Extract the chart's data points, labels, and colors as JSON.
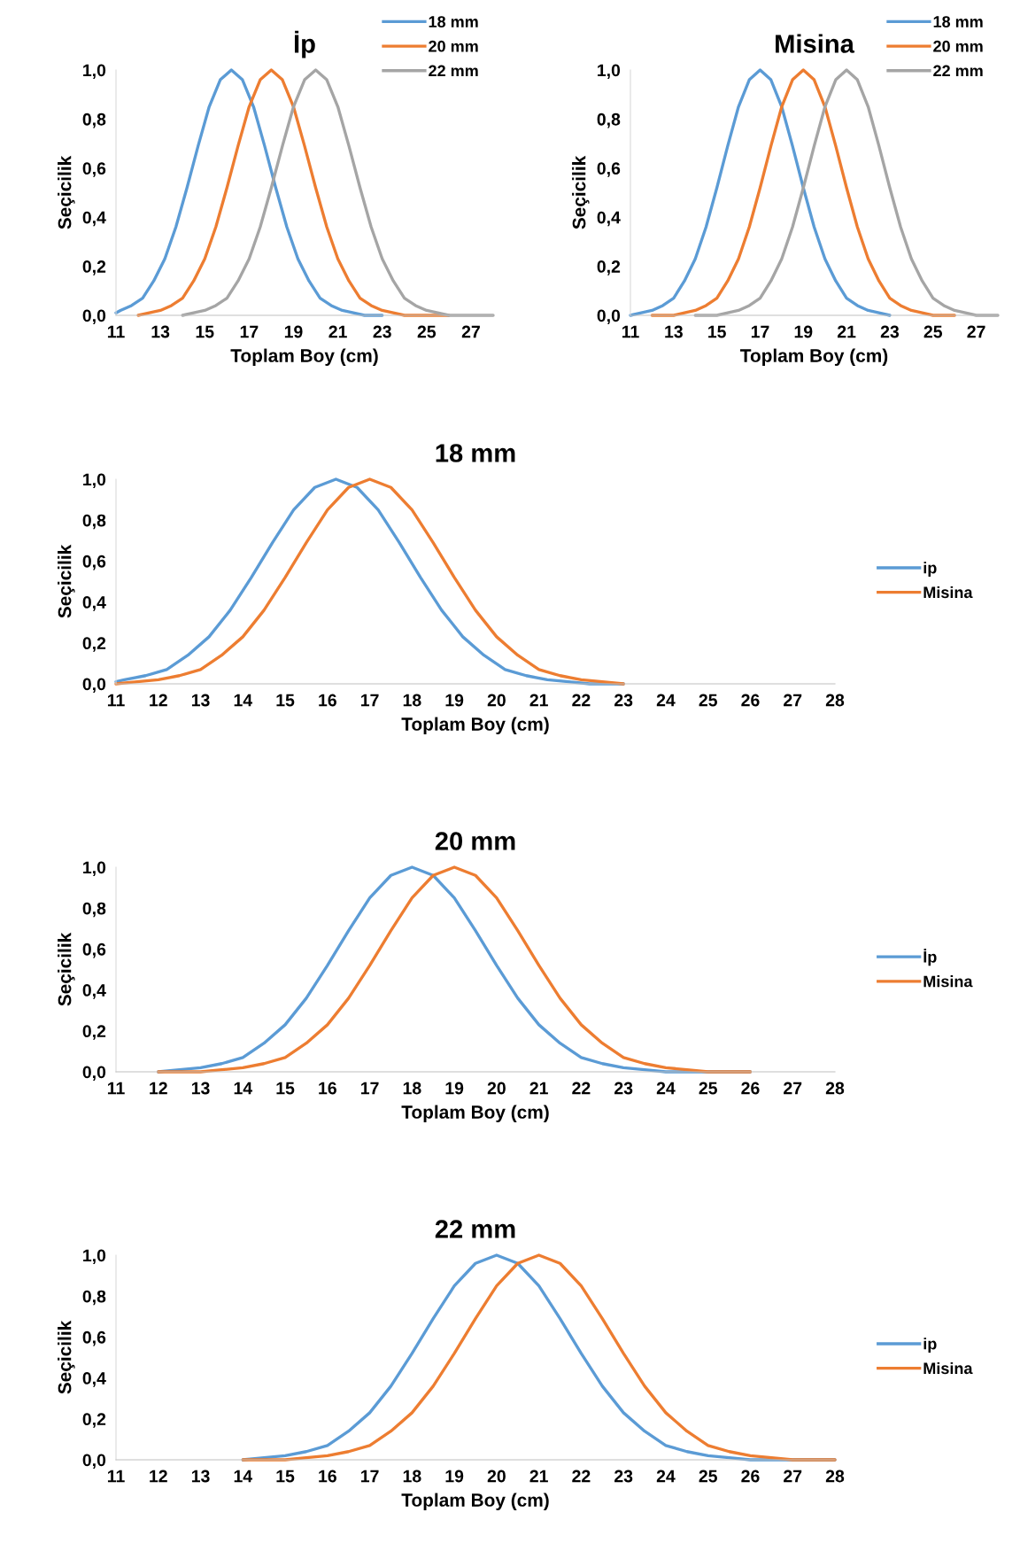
{
  "chart_data": [
    {
      "type": "line",
      "title": "İp",
      "xlabel": "Toplam Boy (cm)",
      "ylabel": "Seçicilik",
      "xlim": [
        11,
        28
      ],
      "xticks": [
        11,
        13,
        15,
        17,
        19,
        21,
        23,
        25,
        27
      ],
      "ylim": [
        0,
        1
      ],
      "yticks": [
        {
          "value": 0,
          "label": "0,0"
        },
        {
          "value": 0.2,
          "label": "0,2"
        },
        {
          "value": 0.4,
          "label": "0,4"
        },
        {
          "value": 0.6,
          "label": "0,6"
        },
        {
          "value": 0.8,
          "label": "0,8"
        },
        {
          "value": 1,
          "label": "1,0"
        }
      ],
      "grid": false,
      "legend": "top right",
      "series": [
        {
          "name": "18 mm",
          "color": "#5b9bd5",
          "x": [
            11,
            11.2,
            11.7,
            12.2,
            12.7,
            13.2,
            13.7,
            14.2,
            14.7,
            15.2,
            15.7,
            16.2,
            16.7,
            17.2,
            17.7,
            18.2,
            18.7,
            19.2,
            19.7,
            20.2,
            20.7,
            21.2,
            21.7,
            22.2,
            22.7,
            23
          ],
          "values": [
            0.01,
            0.02,
            0.04,
            0.07,
            0.14,
            0.23,
            0.36,
            0.52,
            0.69,
            0.85,
            0.96,
            1.0,
            0.96,
            0.85,
            0.69,
            0.52,
            0.36,
            0.23,
            0.14,
            0.07,
            0.04,
            0.02,
            0.01,
            0,
            0,
            0
          ]
        },
        {
          "name": "20 mm",
          "color": "#ed7d31",
          "x": [
            12,
            12.5,
            13,
            13.5,
            14,
            14.5,
            15,
            15.5,
            16,
            16.5,
            17,
            17.5,
            18,
            18.5,
            19,
            19.5,
            20,
            20.5,
            21,
            21.5,
            22,
            22.5,
            23,
            23.5,
            24,
            24.5,
            25,
            25.5,
            26
          ],
          "values": [
            0,
            0.01,
            0.02,
            0.04,
            0.07,
            0.14,
            0.23,
            0.36,
            0.52,
            0.69,
            0.85,
            0.96,
            1.0,
            0.96,
            0.85,
            0.69,
            0.52,
            0.36,
            0.23,
            0.14,
            0.07,
            0.04,
            0.02,
            0.01,
            0,
            0,
            0,
            0,
            0
          ]
        },
        {
          "name": "22 mm",
          "color": "#a5a5a5",
          "x": [
            14,
            14.5,
            15,
            15.5,
            16,
            16.5,
            17,
            17.5,
            18,
            18.5,
            19,
            19.5,
            20,
            20.5,
            21,
            21.5,
            22,
            22.5,
            23,
            23.5,
            24,
            24.5,
            25,
            25.5,
            26,
            26.5,
            27,
            27.5,
            28
          ],
          "values": [
            0,
            0.01,
            0.02,
            0.04,
            0.07,
            0.14,
            0.23,
            0.36,
            0.52,
            0.69,
            0.85,
            0.96,
            1.0,
            0.96,
            0.85,
            0.69,
            0.52,
            0.36,
            0.23,
            0.14,
            0.07,
            0.04,
            0.02,
            0.01,
            0,
            0,
            0,
            0,
            0
          ]
        }
      ]
    },
    {
      "type": "line",
      "title": "Misina",
      "xlabel": "Toplam Boy (cm)",
      "ylabel": "Seçicilik",
      "xlim": [
        11,
        28
      ],
      "xticks": [
        11,
        13,
        15,
        17,
        19,
        21,
        23,
        25,
        27
      ],
      "ylim": [
        0,
        1
      ],
      "yticks": [
        {
          "value": 0,
          "label": "0,0"
        },
        {
          "value": 0.2,
          "label": "0,2"
        },
        {
          "value": 0.4,
          "label": "0,4"
        },
        {
          "value": 0.6,
          "label": "0,6"
        },
        {
          "value": 0.8,
          "label": "0,8"
        },
        {
          "value": 1,
          "label": "1,0"
        }
      ],
      "grid": false,
      "legend": "top right",
      "series": [
        {
          "name": "18 mm",
          "color": "#5b9bd5",
          "x": [
            11,
            11.5,
            12,
            12.5,
            13,
            13.5,
            14,
            14.5,
            15,
            15.5,
            16,
            16.5,
            17,
            17.5,
            18,
            18.5,
            19,
            19.5,
            20,
            20.5,
            21,
            21.5,
            22,
            22.5,
            23
          ],
          "values": [
            0,
            0.01,
            0.02,
            0.04,
            0.07,
            0.14,
            0.23,
            0.36,
            0.52,
            0.69,
            0.85,
            0.96,
            1.0,
            0.96,
            0.85,
            0.69,
            0.52,
            0.36,
            0.23,
            0.14,
            0.07,
            0.04,
            0.02,
            0.01,
            0
          ]
        },
        {
          "name": "20 mm",
          "color": "#ed7d31",
          "x": [
            12,
            12.5,
            13,
            13.5,
            14,
            14.5,
            15,
            15.5,
            16,
            16.5,
            17,
            17.5,
            18,
            18.5,
            19,
            19.5,
            20,
            20.5,
            21,
            21.5,
            22,
            22.5,
            23,
            23.5,
            24,
            24.5,
            25,
            25.5,
            26
          ],
          "values": [
            0,
            0,
            0,
            0.01,
            0.02,
            0.04,
            0.07,
            0.14,
            0.23,
            0.36,
            0.52,
            0.69,
            0.85,
            0.96,
            1.0,
            0.96,
            0.85,
            0.69,
            0.52,
            0.36,
            0.23,
            0.14,
            0.07,
            0.04,
            0.02,
            0.01,
            0,
            0,
            0
          ]
        },
        {
          "name": "22 mm",
          "color": "#a5a5a5",
          "x": [
            14,
            14.5,
            15,
            15.5,
            16,
            16.5,
            17,
            17.5,
            18,
            18.5,
            19,
            19.5,
            20,
            20.5,
            21,
            21.5,
            22,
            22.5,
            23,
            23.5,
            24,
            24.5,
            25,
            25.5,
            26,
            26.5,
            27,
            27.5,
            28
          ],
          "values": [
            0,
            0,
            0,
            0.01,
            0.02,
            0.04,
            0.07,
            0.14,
            0.23,
            0.36,
            0.52,
            0.69,
            0.85,
            0.96,
            1.0,
            0.96,
            0.85,
            0.69,
            0.52,
            0.36,
            0.23,
            0.14,
            0.07,
            0.04,
            0.02,
            0.01,
            0,
            0,
            0
          ]
        }
      ]
    },
    {
      "type": "line",
      "title": "18 mm",
      "xlabel": "Toplam Boy (cm)",
      "ylabel": "Seçicilik",
      "xlim": [
        11,
        28
      ],
      "xticks": [
        11,
        12,
        13,
        14,
        15,
        16,
        17,
        18,
        19,
        20,
        21,
        22,
        23,
        24,
        25,
        26,
        27,
        28
      ],
      "ylim": [
        0,
        1
      ],
      "yticks": [
        {
          "value": 0,
          "label": "0,0"
        },
        {
          "value": 0.2,
          "label": "0,2"
        },
        {
          "value": 0.4,
          "label": "0,4"
        },
        {
          "value": 0.6,
          "label": "0,6"
        },
        {
          "value": 0.8,
          "label": "0,8"
        },
        {
          "value": 1,
          "label": "1,0"
        }
      ],
      "grid": false,
      "legend": "right",
      "series": [
        {
          "name": "ip",
          "color": "#5b9bd5",
          "x": [
            11,
            11.2,
            11.7,
            12.2,
            12.7,
            13.2,
            13.7,
            14.2,
            14.7,
            15.2,
            15.7,
            16.2,
            16.7,
            17.2,
            17.7,
            18.2,
            18.7,
            19.2,
            19.7,
            20.2,
            20.7,
            21.2,
            21.7,
            22.2,
            22.7,
            23
          ],
          "values": [
            0.01,
            0.02,
            0.04,
            0.07,
            0.14,
            0.23,
            0.36,
            0.52,
            0.69,
            0.85,
            0.96,
            1.0,
            0.96,
            0.85,
            0.69,
            0.52,
            0.36,
            0.23,
            0.14,
            0.07,
            0.04,
            0.02,
            0.01,
            0,
            0,
            0
          ]
        },
        {
          "name": "Misina",
          "color": "#ed7d31",
          "x": [
            11,
            11.5,
            12,
            12.5,
            13,
            13.5,
            14,
            14.5,
            15,
            15.5,
            16,
            16.5,
            17,
            17.5,
            18,
            18.5,
            19,
            19.5,
            20,
            20.5,
            21,
            21.5,
            22,
            22.5,
            23
          ],
          "values": [
            0,
            0.01,
            0.02,
            0.04,
            0.07,
            0.14,
            0.23,
            0.36,
            0.52,
            0.69,
            0.85,
            0.96,
            1.0,
            0.96,
            0.85,
            0.69,
            0.52,
            0.36,
            0.23,
            0.14,
            0.07,
            0.04,
            0.02,
            0.01,
            0
          ]
        }
      ]
    },
    {
      "type": "line",
      "title": "20 mm",
      "xlabel": "Toplam Boy (cm)",
      "ylabel": "Seçicilik",
      "xlim": [
        11,
        28
      ],
      "xticks": [
        11,
        12,
        13,
        14,
        15,
        16,
        17,
        18,
        19,
        20,
        21,
        22,
        23,
        24,
        25,
        26,
        27,
        28
      ],
      "ylim": [
        0,
        1
      ],
      "yticks": [
        {
          "value": 0,
          "label": "0,0"
        },
        {
          "value": 0.2,
          "label": "0,2"
        },
        {
          "value": 0.4,
          "label": "0,4"
        },
        {
          "value": 0.6,
          "label": "0,6"
        },
        {
          "value": 0.8,
          "label": "0,8"
        },
        {
          "value": 1,
          "label": "1,0"
        }
      ],
      "grid": false,
      "legend": "right",
      "series": [
        {
          "name": "İp",
          "color": "#5b9bd5",
          "x": [
            12,
            12.5,
            13,
            13.5,
            14,
            14.5,
            15,
            15.5,
            16,
            16.5,
            17,
            17.5,
            18,
            18.5,
            19,
            19.5,
            20,
            20.5,
            21,
            21.5,
            22,
            22.5,
            23,
            23.5,
            24,
            24.5,
            25,
            25.5,
            26
          ],
          "values": [
            0,
            0.01,
            0.02,
            0.04,
            0.07,
            0.14,
            0.23,
            0.36,
            0.52,
            0.69,
            0.85,
            0.96,
            1.0,
            0.96,
            0.85,
            0.69,
            0.52,
            0.36,
            0.23,
            0.14,
            0.07,
            0.04,
            0.02,
            0.01,
            0,
            0,
            0,
            0,
            0
          ]
        },
        {
          "name": "Misina",
          "color": "#ed7d31",
          "x": [
            12,
            12.5,
            13,
            13.5,
            14,
            14.5,
            15,
            15.5,
            16,
            16.5,
            17,
            17.5,
            18,
            18.5,
            19,
            19.5,
            20,
            20.5,
            21,
            21.5,
            22,
            22.5,
            23,
            23.5,
            24,
            24.5,
            25,
            25.5,
            26
          ],
          "values": [
            0,
            0,
            0,
            0.01,
            0.02,
            0.04,
            0.07,
            0.14,
            0.23,
            0.36,
            0.52,
            0.69,
            0.85,
            0.96,
            1.0,
            0.96,
            0.85,
            0.69,
            0.52,
            0.36,
            0.23,
            0.14,
            0.07,
            0.04,
            0.02,
            0.01,
            0,
            0,
            0
          ]
        }
      ]
    },
    {
      "type": "line",
      "title": "22 mm",
      "xlabel": "Toplam Boy (cm)",
      "ylabel": "Seçicilik",
      "xlim": [
        11,
        28
      ],
      "xticks": [
        11,
        12,
        13,
        14,
        15,
        16,
        17,
        18,
        19,
        20,
        21,
        22,
        23,
        24,
        25,
        26,
        27,
        28
      ],
      "ylim": [
        0,
        1
      ],
      "yticks": [
        {
          "value": 0,
          "label": "0,0"
        },
        {
          "value": 0.2,
          "label": "0,2"
        },
        {
          "value": 0.4,
          "label": "0,4"
        },
        {
          "value": 0.6,
          "label": "0,6"
        },
        {
          "value": 0.8,
          "label": "0,8"
        },
        {
          "value": 1,
          "label": "1,0"
        }
      ],
      "grid": false,
      "legend": "right",
      "series": [
        {
          "name": "ip",
          "color": "#5b9bd5",
          "x": [
            14,
            14.5,
            15,
            15.5,
            16,
            16.5,
            17,
            17.5,
            18,
            18.5,
            19,
            19.5,
            20,
            20.5,
            21,
            21.5,
            22,
            22.5,
            23,
            23.5,
            24,
            24.5,
            25,
            25.5,
            26,
            26.5,
            27,
            27.5,
            28
          ],
          "values": [
            0,
            0.01,
            0.02,
            0.04,
            0.07,
            0.14,
            0.23,
            0.36,
            0.52,
            0.69,
            0.85,
            0.96,
            1.0,
            0.96,
            0.85,
            0.69,
            0.52,
            0.36,
            0.23,
            0.14,
            0.07,
            0.04,
            0.02,
            0.01,
            0,
            0,
            0,
            0,
            0
          ]
        },
        {
          "name": "Misina",
          "color": "#ed7d31",
          "x": [
            14,
            14.5,
            15,
            15.5,
            16,
            16.5,
            17,
            17.5,
            18,
            18.5,
            19,
            19.5,
            20,
            20.5,
            21,
            21.5,
            22,
            22.5,
            23,
            23.5,
            24,
            24.5,
            25,
            25.5,
            26,
            26.5,
            27,
            27.5,
            28
          ],
          "values": [
            0,
            0,
            0,
            0.01,
            0.02,
            0.04,
            0.07,
            0.14,
            0.23,
            0.36,
            0.52,
            0.69,
            0.85,
            0.96,
            1.0,
            0.96,
            0.85,
            0.69,
            0.52,
            0.36,
            0.23,
            0.14,
            0.07,
            0.04,
            0.02,
            0.01,
            0,
            0,
            0
          ]
        }
      ]
    }
  ]
}
